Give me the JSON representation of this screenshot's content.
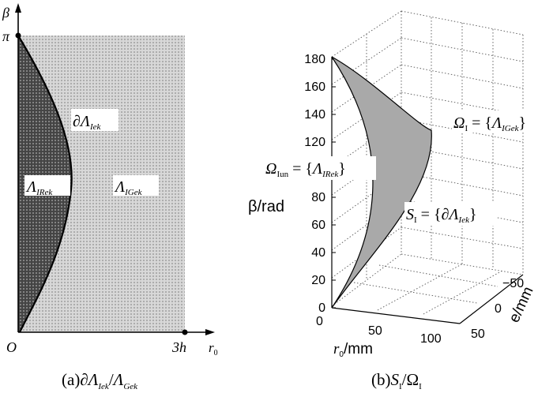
{
  "figure_a": {
    "y_axis": "β",
    "y_top_tick": "π",
    "x_axis": "r",
    "x_axis_sub": "0",
    "origin": "O",
    "x_tick_end": "3h",
    "boundary": {
      "base": "∂Λ",
      "sub": "Iek"
    },
    "region_left": {
      "base": "Λ",
      "sub": "IRek"
    },
    "region_right": {
      "base": "Λ",
      "sub": "IGek"
    },
    "caption": {
      "prefix": "(a)",
      "part1": "∂Λ",
      "sub1": "Iek",
      "slash": "/",
      "part2": "Λ",
      "sub2": "Gek"
    }
  },
  "figure_b": {
    "y_ticks": [
      "0",
      "20",
      "40",
      "60",
      "80",
      "100",
      "120",
      "140",
      "160",
      "180"
    ],
    "y_label": "β/rad",
    "x_ticks": [
      "0",
      "50",
      "100"
    ],
    "x_label": {
      "base": "r",
      "sub": "0",
      "rest": "/mm"
    },
    "e_ticks": [
      "−50",
      "0",
      "50"
    ],
    "e_label": "e/mm",
    "omega_i": {
      "base": "Ω",
      "sub": "I",
      "eq": " = {",
      "inner": "Λ",
      "inner_sub": "IGek",
      "close": "}"
    },
    "omega_iun": {
      "base": "Ω",
      "sub": "Iun",
      "eq": " = {",
      "inner": "Λ",
      "inner_sub": "IRek",
      "close": "}"
    },
    "s_i": {
      "base": "S",
      "sub": "I",
      "eq": " = {",
      "inner": "∂Λ",
      "inner_sub": "Iek",
      "close": "}"
    },
    "caption": {
      "prefix": "(b)",
      "part1": "S",
      "sub1": "I",
      "slash": "/",
      "part2": "Ω",
      "sub2": "I"
    }
  }
}
